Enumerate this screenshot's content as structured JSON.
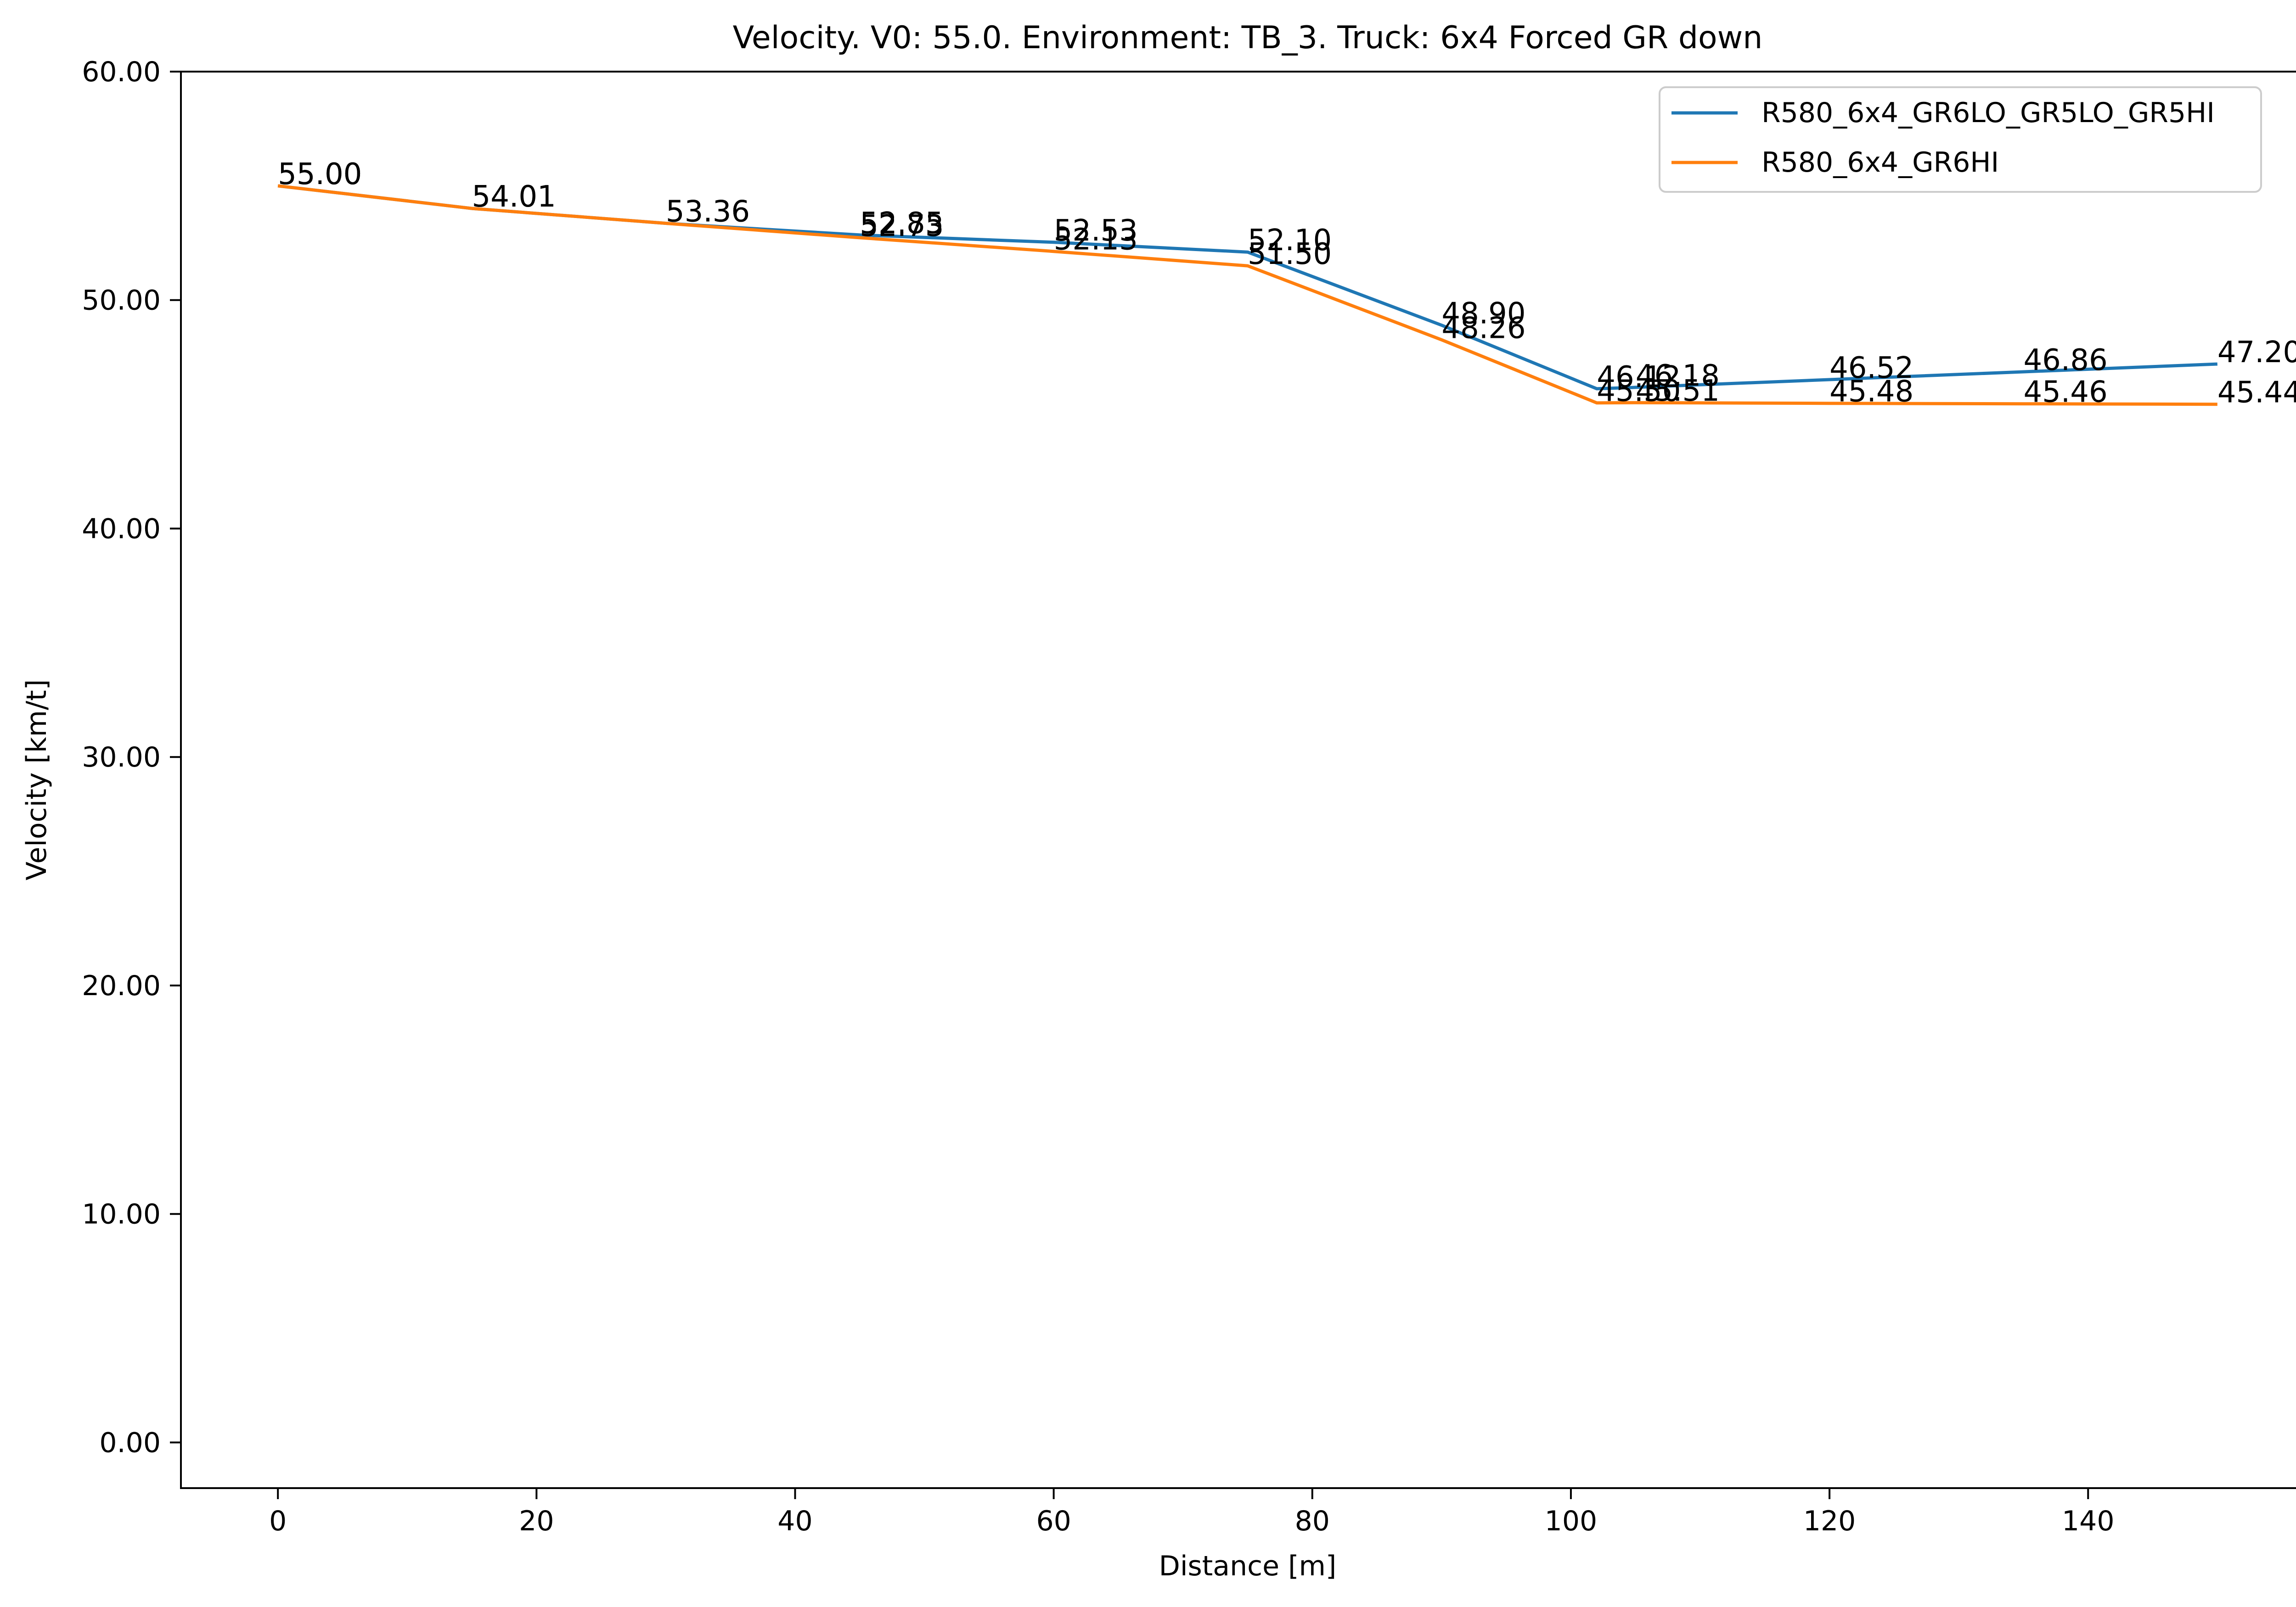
{
  "chart_data": {
    "type": "line",
    "title": "Velocity. V0: 55.0. Environment: TB_3. Truck: 6x4 Forced GR down",
    "xlabel": "Distance [m]",
    "ylabel": "Velocity [km/t]",
    "xlim": [
      -7.5,
      157.5
    ],
    "ylim": [
      -2,
      60
    ],
    "xticks": [
      0,
      20,
      40,
      60,
      80,
      100,
      120,
      140
    ],
    "xtick_labels": [
      "0",
      "20",
      "40",
      "60",
      "80",
      "100",
      "120",
      "140"
    ],
    "yticks": [
      0,
      10,
      20,
      30,
      40,
      50,
      60
    ],
    "ytick_labels": [
      "0.00",
      "10.00",
      "20.00",
      "30.00",
      "40.00",
      "50.00",
      "60.00"
    ],
    "grid": false,
    "legend_position": "top-right",
    "series": [
      {
        "name": "R580_6x4_GR6LO_GR5LO_GR5HI",
        "color": "#1f77b4",
        "x": [
          0,
          15,
          30,
          45,
          60,
          75,
          90,
          102,
          105,
          120,
          135,
          150
        ],
        "y": [
          55.0,
          54.01,
          53.36,
          52.85,
          52.53,
          52.1,
          48.9,
          46.12,
          46.18,
          46.52,
          46.86,
          47.2
        ],
        "labels": [
          "55.00",
          "54.01",
          "53.36",
          "52.85",
          "52.53",
          "52.10",
          "48.90",
          "46.12",
          "46.18",
          "46.52",
          "46.86",
          "47.20"
        ]
      },
      {
        "name": "R580_6x4_GR6HI",
        "color": "#ff7f0e",
        "x": [
          0,
          15,
          30,
          45,
          60,
          75,
          90,
          102,
          105,
          120,
          135,
          150
        ],
        "y": [
          55.0,
          54.01,
          53.36,
          52.73,
          52.13,
          51.5,
          48.26,
          45.5,
          45.51,
          45.48,
          45.46,
          45.44
        ],
        "labels": [
          "55.00",
          "54.01",
          "53.36",
          "52.73",
          "52.13",
          "51.50",
          "48.26",
          "45.50",
          "45.51",
          "45.48",
          "45.46",
          "45.44"
        ]
      }
    ]
  }
}
